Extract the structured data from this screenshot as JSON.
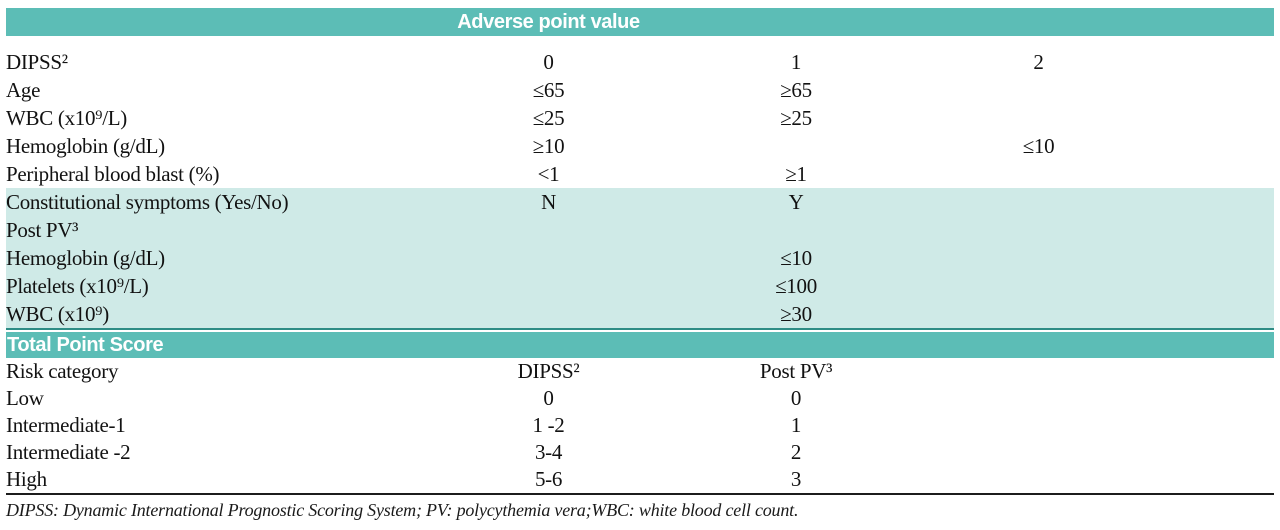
{
  "colors": {
    "teal_bar": "#5cbdb6",
    "light_band": "#cfeae7",
    "dark_divider": "#2e8c85",
    "text": "#121212"
  },
  "adverse_header": {
    "title": "Adverse point value"
  },
  "adverse_table": {
    "rows": [
      {
        "label": "DIPSS²",
        "col0": "0",
        "col1": "1",
        "col2": "2"
      },
      {
        "label": "Age",
        "col0": "≤65",
        "col1": "≥65",
        "col2": ""
      },
      {
        "label": "WBC (x10⁹/L)",
        "col0": "≤25",
        "col1": "≥25",
        "col2": ""
      },
      {
        "label": "Hemoglobin (g/dL)",
        "col0": "≥10",
        "col1": "",
        "col2": "≤10"
      },
      {
        "label": "Peripheral blood blast (%)",
        "col0": "<1",
        "col1": "≥1",
        "col2": ""
      },
      {
        "label": "Constitutional symptoms (Yes/No)",
        "col0": "N",
        "col1": "Y",
        "col2": ""
      },
      {
        "label": "Post PV³",
        "col0": "",
        "col1": "",
        "col2": ""
      },
      {
        "label": "Hemoglobin (g/dL)",
        "col0": "",
        "col1": "≤10",
        "col2": ""
      },
      {
        "label": "Platelets (x10⁹/L)",
        "col0": "",
        "col1": "≤100",
        "col2": ""
      },
      {
        "label": "WBC (x10⁹)",
        "col0": "",
        "col1": "≥30",
        "col2": ""
      }
    ]
  },
  "total_section": {
    "title": "Total Point Score",
    "header": {
      "label": "Risk category",
      "col0": "DIPSS²",
      "col1": "Post PV³"
    },
    "rows": [
      {
        "label": "Low",
        "col0": "0",
        "col1": "0"
      },
      {
        "label": "Intermediate-1",
        "col0": "1 -2",
        "col1": "1"
      },
      {
        "label": "Intermediate -2",
        "col0": "3-4",
        "col1": "2"
      },
      {
        "label": "High",
        "col0": "5-6",
        "col1": "3"
      }
    ]
  },
  "footnote": "DIPSS: Dynamic International Prognostic Scoring System; PV: polycythemia vera;WBC: white blood cell count."
}
